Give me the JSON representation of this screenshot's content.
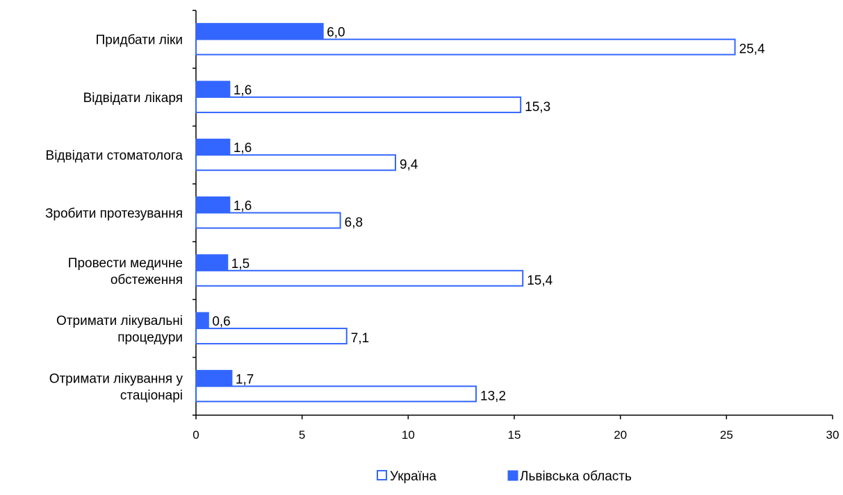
{
  "chart_data": {
    "type": "bar",
    "orientation": "horizontal",
    "categories": [
      [
        "Придбати ліки"
      ],
      [
        "Відвідати лікаря"
      ],
      [
        "Відвідати стоматолога"
      ],
      [
        "Зробити протезування"
      ],
      [
        "Провести медичне",
        "обстеження"
      ],
      [
        "Отримати лікувальні",
        "процедури"
      ],
      [
        "Отримати лікування у",
        "стаціонарі"
      ]
    ],
    "series": [
      {
        "name": "Львівська область",
        "color": "#3366ff",
        "fill": "solid",
        "values": [
          6.0,
          1.6,
          1.6,
          1.6,
          1.5,
          0.6,
          1.7
        ],
        "labels": [
          "6,0",
          "1,6",
          "1,6",
          "1,6",
          "1,5",
          "0,6",
          "1,7"
        ]
      },
      {
        "name": "Україна",
        "color": "#3366ff",
        "fill": "outline",
        "values": [
          25.4,
          15.3,
          9.4,
          6.8,
          15.4,
          7.1,
          13.2
        ],
        "labels": [
          "25,4",
          "15,3",
          "9,4",
          "6,8",
          "15,4",
          "7,1",
          "13,2"
        ]
      }
    ],
    "xlim": [
      0,
      30
    ],
    "xticks": [
      0,
      5,
      10,
      15,
      20,
      25,
      30
    ],
    "grid": false,
    "legend": {
      "position": "bottom",
      "order": [
        "Україна",
        "Львівська область"
      ]
    }
  }
}
